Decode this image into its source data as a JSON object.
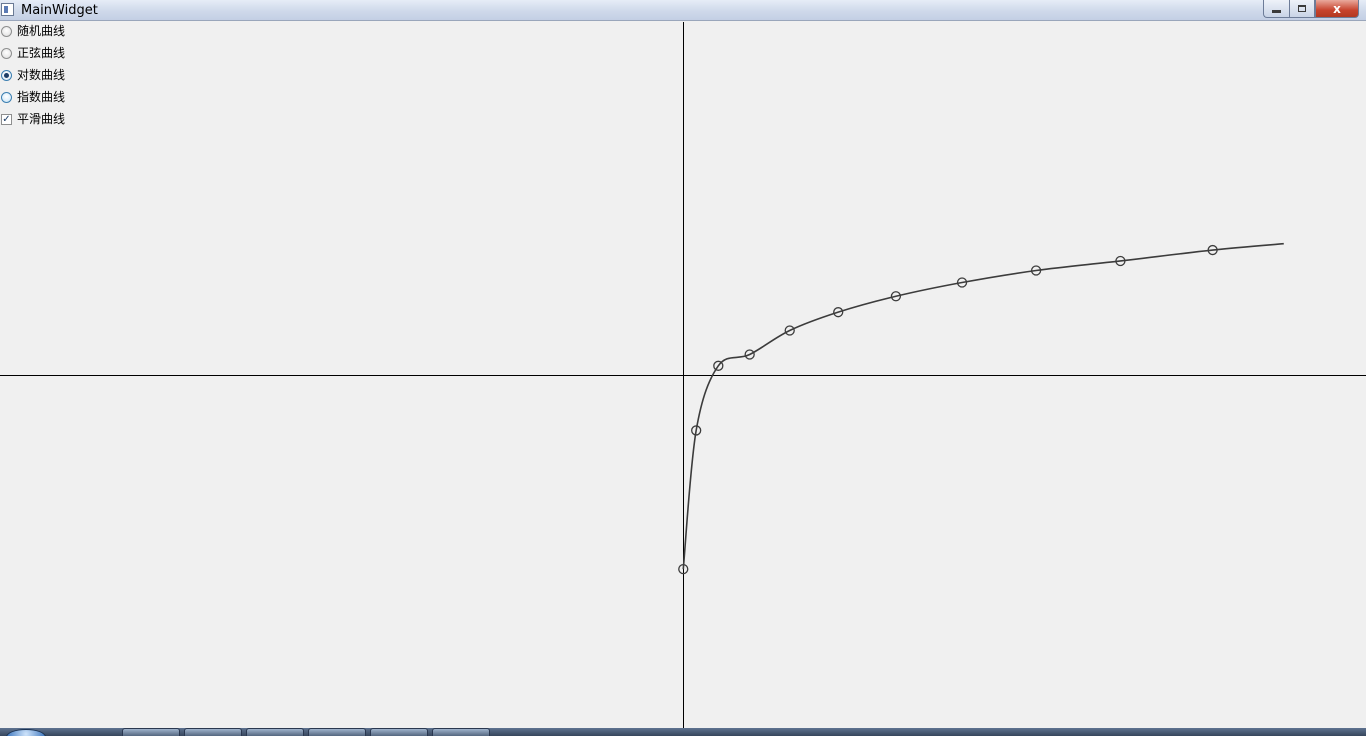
{
  "window": {
    "title": "MainWidget"
  },
  "window_controls": {
    "close_glyph": "x"
  },
  "options": [
    {
      "label": "随机曲线",
      "kind": "radio",
      "checked": false
    },
    {
      "label": "正弦曲线",
      "kind": "radio",
      "checked": false
    },
    {
      "label": "对数曲线",
      "kind": "radio",
      "checked": true
    },
    {
      "label": "指数曲线",
      "kind": "radio",
      "checked": false
    },
    {
      "label": "平滑曲线",
      "kind": "checkbox",
      "checked": true
    }
  ],
  "checkbox_mark": "✓",
  "colors": {
    "background": "#f0f0f0",
    "axis": "#000000",
    "curve": "#3c3c3c"
  },
  "chart_data": {
    "type": "line",
    "title": "",
    "xlabel": "",
    "ylabel": "",
    "smooth": true,
    "markers": "hollow-circle",
    "grid": false,
    "axes_through_origin": true,
    "xlim": [
      0,
      2.3
    ],
    "ylim": [
      -1.0,
      1.0
    ],
    "series": [
      {
        "x": [
          0.001,
          0.05,
          0.134,
          0.253,
          0.405,
          0.589,
          0.808,
          1.059,
          1.34,
          1.66,
          2.01,
          2.28
        ],
        "y": [
          -0.55,
          -0.157,
          0.026,
          0.058,
          0.126,
          0.178,
          0.223,
          0.262,
          0.296,
          0.323,
          0.354,
          0.372
        ]
      }
    ]
  }
}
